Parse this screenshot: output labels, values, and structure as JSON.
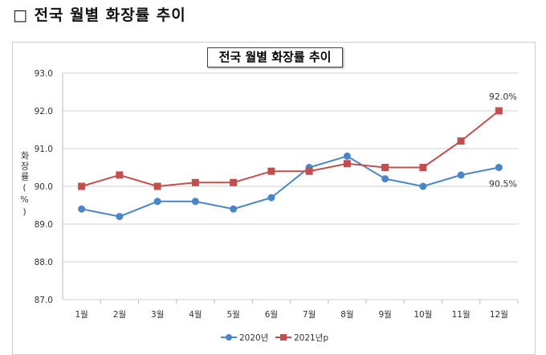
{
  "heading": "□ 전국 월별 화장률 추이",
  "chart_data": {
    "type": "line",
    "title": "전국 월별 화장률 추이",
    "ylabel": "화장률(%)",
    "categories": [
      "1월",
      "2월",
      "3월",
      "4월",
      "5월",
      "6월",
      "7월",
      "8월",
      "9월",
      "10월",
      "11월",
      "12월"
    ],
    "ylim": [
      87.0,
      93.0
    ],
    "yticks": [
      "87.0",
      "88.0",
      "89.0",
      "90.0",
      "91.0",
      "92.0",
      "93.0"
    ],
    "grid": true,
    "legend": "bottom",
    "series": [
      {
        "name": "2020년",
        "color": "#4a86c5",
        "marker": "circle",
        "values": [
          89.4,
          89.2,
          89.6,
          89.6,
          89.4,
          89.7,
          90.5,
          90.8,
          90.2,
          90.0,
          90.3,
          90.5
        ],
        "end_label": "90.5%"
      },
      {
        "name": "2021년p",
        "color": "#c0504d",
        "marker": "square",
        "values": [
          90.0,
          90.3,
          90.0,
          90.1,
          90.1,
          90.4,
          90.4,
          90.6,
          90.5,
          90.5,
          91.2,
          92.0
        ],
        "end_label": "92.0%"
      }
    ]
  }
}
